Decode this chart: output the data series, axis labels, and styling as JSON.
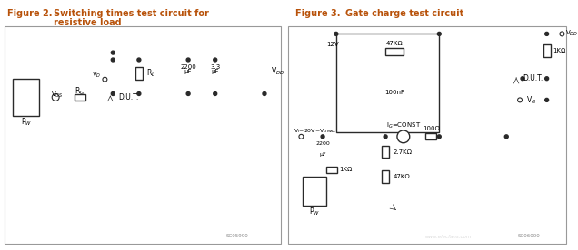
{
  "fig_width": 6.36,
  "fig_height": 2.76,
  "dpi": 100,
  "bg_color": "#ffffff",
  "title_color": "#b8520a",
  "line_color": "#2a2a2a",
  "lw": 1.0,
  "fig2_title_num": "Figure 2.",
  "fig2_title_txt1": "Switching times test circuit for",
  "fig2_title_txt2": "resistive load",
  "fig3_title_num": "Figure 3.",
  "fig3_title_txt": "Gate charge test circuit",
  "watermark1": "SC05990",
  "watermark2": "SC06000"
}
